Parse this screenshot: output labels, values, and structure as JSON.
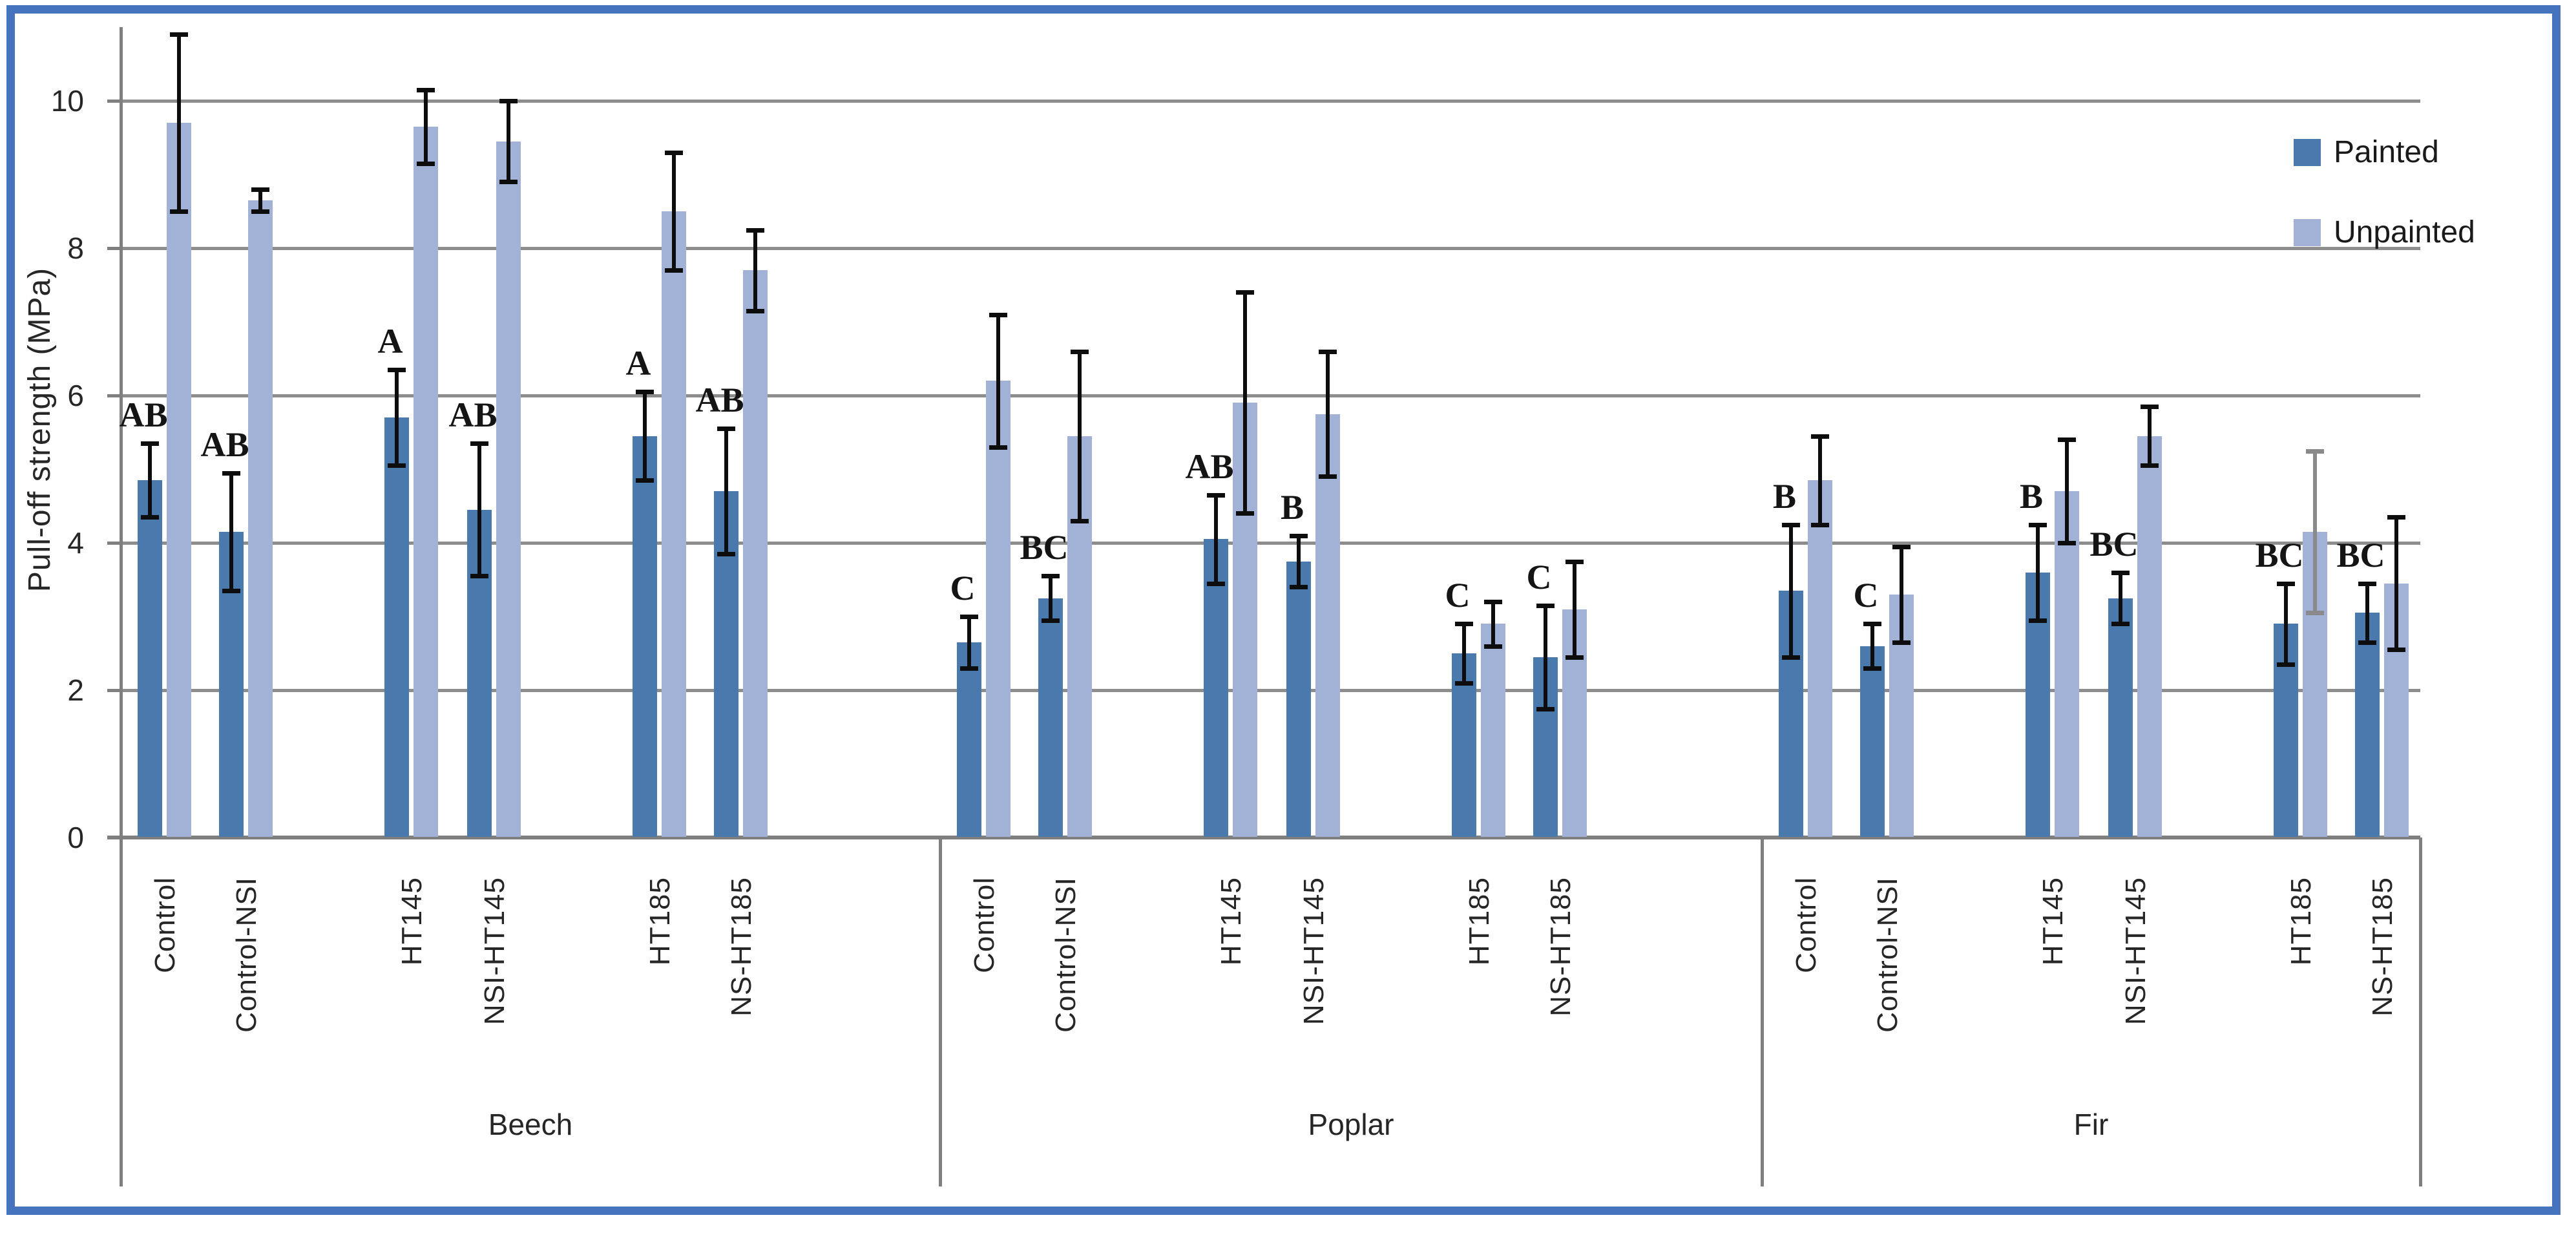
{
  "chart_data": {
    "type": "bar",
    "title": "",
    "xlabel": "",
    "ylabel": "Pull-off strength  (MPa)",
    "ylim": [
      0,
      11
    ],
    "yticks": [
      0,
      2,
      4,
      6,
      8,
      10
    ],
    "grid": "horizontal",
    "legend_position": "right",
    "legend": [
      {
        "label": "Painted",
        "color": "#4A7AAD"
      },
      {
        "label": "Unpainted",
        "color": "#A2B2D7"
      }
    ],
    "error_bar_color": "#0d0d0d",
    "groups": [
      {
        "label": "Beech",
        "items": [
          {
            "category": "Control",
            "letter": "AB",
            "painted": {
              "value": 4.85,
              "error": 0.5
            },
            "unpainted": {
              "value": 9.7,
              "error": 1.2
            }
          },
          {
            "category": "Control-NSI",
            "letter": "AB",
            "painted": {
              "value": 4.15,
              "error": 0.8
            },
            "unpainted": {
              "value": 8.65,
              "error": 0.15
            }
          },
          {
            "category": "HT145",
            "letter": "A",
            "painted": {
              "value": 5.7,
              "error": 0.65
            },
            "unpainted": {
              "value": 9.65,
              "error": 0.5
            }
          },
          {
            "category": "NSI-HT145",
            "letter": "AB",
            "painted": {
              "value": 4.45,
              "error": 0.9
            },
            "unpainted": {
              "value": 9.45,
              "error": 0.55
            }
          },
          {
            "category": "HT185",
            "letter": "A",
            "painted": {
              "value": 5.45,
              "error": 0.6
            },
            "unpainted": {
              "value": 8.5,
              "error": 0.8
            }
          },
          {
            "category": "NS-HT185",
            "letter": "AB",
            "painted": {
              "value": 4.7,
              "error": 0.85
            },
            "unpainted": {
              "value": 7.7,
              "error": 0.55
            }
          }
        ]
      },
      {
        "label": "Poplar",
        "items": [
          {
            "category": "Control",
            "letter": "C",
            "painted": {
              "value": 2.65,
              "error": 0.35
            },
            "unpainted": {
              "value": 6.2,
              "error": 0.9
            }
          },
          {
            "category": "Control-NSI",
            "letter": "BC",
            "painted": {
              "value": 3.25,
              "error": 0.3
            },
            "unpainted": {
              "value": 5.45,
              "error": 1.15
            }
          },
          {
            "category": "HT145",
            "letter": "AB",
            "painted": {
              "value": 4.05,
              "error": 0.6
            },
            "unpainted": {
              "value": 5.9,
              "error": 1.5
            }
          },
          {
            "category": "NSI-HT145",
            "letter": "B",
            "painted": {
              "value": 3.75,
              "error": 0.35
            },
            "unpainted": {
              "value": 5.75,
              "error": 0.85
            }
          },
          {
            "category": "HT185",
            "letter": "C",
            "painted": {
              "value": 2.5,
              "error": 0.4
            },
            "unpainted": {
              "value": 2.9,
              "error": 0.3
            }
          },
          {
            "category": "NS-HT185",
            "letter": "C",
            "painted": {
              "value": 2.45,
              "error": 0.7
            },
            "unpainted": {
              "value": 3.1,
              "error": 0.65
            }
          }
        ]
      },
      {
        "label": "Fir",
        "items": [
          {
            "category": "Control",
            "letter": "B",
            "painted": {
              "value": 3.35,
              "error": 0.9
            },
            "unpainted": {
              "value": 4.85,
              "error": 0.6
            }
          },
          {
            "category": "Control-NSI",
            "letter": "C",
            "painted": {
              "value": 2.6,
              "error": 0.3
            },
            "unpainted": {
              "value": 3.3,
              "error": 0.65
            }
          },
          {
            "category": "HT145",
            "letter": "B",
            "painted": {
              "value": 3.6,
              "error": 0.65
            },
            "unpainted": {
              "value": 4.7,
              "error": 0.7
            }
          },
          {
            "category": "NSI-HT145",
            "letter": "BC",
            "painted": {
              "value": 3.25,
              "error": 0.35
            },
            "unpainted": {
              "value": 5.45,
              "error": 0.4
            }
          },
          {
            "category": "HT185",
            "letter": "BC",
            "painted": {
              "value": 2.9,
              "error": 0.55
            },
            "unpainted": {
              "value": 4.15,
              "error": 1.1,
              "error_color": "#8a8a8a"
            }
          },
          {
            "category": "NS-HT185",
            "letter": "BC",
            "painted": {
              "value": 3.05,
              "error": 0.4
            },
            "unpainted": {
              "value": 3.45,
              "error": 0.9
            }
          }
        ]
      }
    ]
  }
}
